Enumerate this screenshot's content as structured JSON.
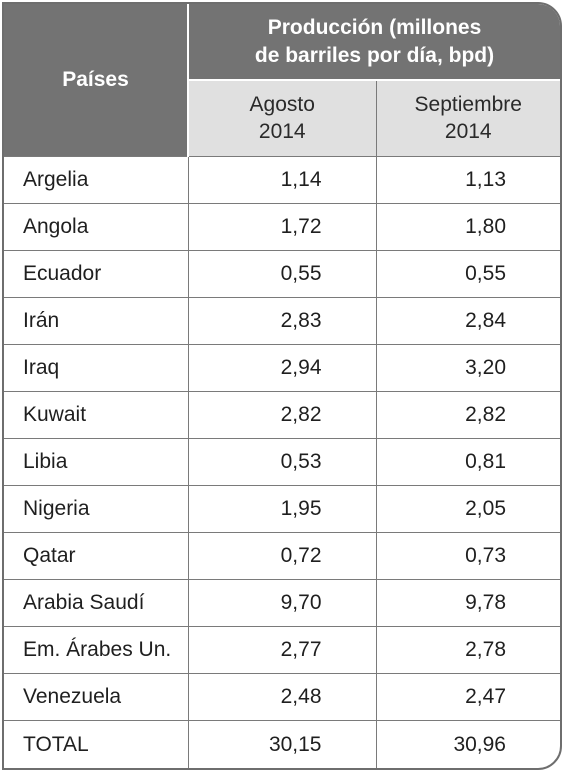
{
  "header": {
    "paises": "Países",
    "produccion_line1": "Producción (millones",
    "produccion_line2": "de barriles por día, bpd)",
    "col_agosto_month": "Agosto",
    "col_agosto_year": "2014",
    "col_septiembre_month": "Septiembre",
    "col_septiembre_year": "2014"
  },
  "rows": [
    {
      "country": "Argelia",
      "agosto": "1,14",
      "septiembre": "1,13"
    },
    {
      "country": "Angola",
      "agosto": "1,72",
      "septiembre": "1,80"
    },
    {
      "country": "Ecuador",
      "agosto": "0,55",
      "septiembre": "0,55"
    },
    {
      "country": "Irán",
      "agosto": "2,83",
      "septiembre": "2,84"
    },
    {
      "country": "Iraq",
      "agosto": "2,94",
      "septiembre": "3,20"
    },
    {
      "country": "Kuwait",
      "agosto": "2,82",
      "septiembre": "2,82"
    },
    {
      "country": "Libia",
      "agosto": "0,53",
      "septiembre": "0,81"
    },
    {
      "country": "Nigeria",
      "agosto": "1,95",
      "septiembre": "2,05"
    },
    {
      "country": "Qatar",
      "agosto": "0,72",
      "septiembre": "0,73"
    },
    {
      "country": "Arabia Saudí",
      "agosto": "9,70",
      "septiembre": "9,78"
    },
    {
      "country": "Em. Árabes Un.",
      "agosto": "2,77",
      "septiembre": "2,78"
    },
    {
      "country": "Venezuela",
      "agosto": "2,48",
      "septiembre": "2,47"
    },
    {
      "country": "TOTAL",
      "agosto": "30,15",
      "septiembre": "30,96"
    }
  ]
}
